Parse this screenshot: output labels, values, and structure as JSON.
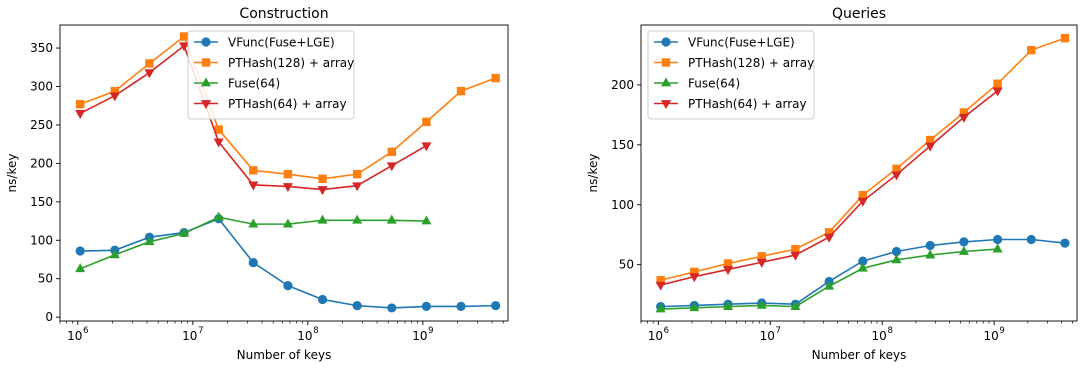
{
  "chart_data": [
    {
      "type": "line",
      "title": "Construction",
      "xlabel": "Number of keys",
      "ylabel": "ns/key",
      "xscale": "log",
      "xlim": [
        700000,
        5500000000
      ],
      "ylim": [
        -5,
        380
      ],
      "xticks": [
        1000000,
        10000000,
        100000000,
        1000000000
      ],
      "xtick_labels": [
        [
          "10",
          "6"
        ],
        [
          "10",
          "7"
        ],
        [
          "10",
          "8"
        ],
        [
          "10",
          "9"
        ]
      ],
      "yticks": [
        0,
        50,
        100,
        150,
        200,
        250,
        300,
        350
      ],
      "ytick_labels": [
        "0",
        "50",
        "100",
        "150",
        "200",
        "250",
        "300",
        "350"
      ],
      "grid": false,
      "legend_position": "top-center",
      "series": [
        {
          "name": "VFunc(Fuse+LGE)",
          "color": "#1f77b4",
          "marker": "circle",
          "x": [
            1048576,
            2097152,
            4194304,
            8388608,
            16777216,
            33554432,
            67108864,
            134217728,
            268435456,
            536870912,
            1073741824,
            2147483648,
            4294967296
          ],
          "y": [
            86,
            87,
            104,
            110,
            128,
            71,
            41,
            23,
            15,
            12,
            14,
            14,
            15
          ]
        },
        {
          "name": "PTHash(128) + array",
          "color": "#ff7f0e",
          "marker": "square",
          "x": [
            1048576,
            2097152,
            4194304,
            8388608,
            16777216,
            33554432,
            67108864,
            134217728,
            268435456,
            536870912,
            1073741824,
            2147483648,
            4294967296
          ],
          "y": [
            277,
            294,
            330,
            365,
            244,
            191,
            186,
            180,
            186,
            215,
            254,
            294,
            311
          ]
        },
        {
          "name": "Fuse(64)",
          "color": "#2ca02c",
          "marker": "triangle-up",
          "x": [
            1048576,
            2097152,
            4194304,
            8388608,
            16777216,
            33554432,
            67108864,
            134217728,
            268435456,
            536870912,
            1073741824
          ],
          "y": [
            63,
            81,
            98,
            109,
            130,
            121,
            121,
            126,
            126,
            126,
            125
          ]
        },
        {
          "name": "PTHash(64) + array",
          "color": "#d62728",
          "marker": "triangle-down",
          "x": [
            1048576,
            2097152,
            4194304,
            8388608,
            16777216,
            33554432,
            67108864,
            134217728,
            268435456,
            536870912,
            1073741824
          ],
          "y": [
            265,
            288,
            318,
            353,
            228,
            172,
            170,
            166,
            171,
            197,
            223
          ]
        }
      ]
    },
    {
      "type": "line",
      "title": "Queries",
      "xlabel": "Number of keys",
      "ylabel": "ns/key",
      "xscale": "log",
      "xlim": [
        700000,
        5500000000
      ],
      "ylim": [
        3,
        250
      ],
      "xticks": [
        1000000,
        10000000,
        100000000,
        1000000000
      ],
      "xtick_labels": [
        [
          "10",
          "6"
        ],
        [
          "10",
          "7"
        ],
        [
          "10",
          "8"
        ],
        [
          "10",
          "9"
        ]
      ],
      "yticks": [
        50,
        100,
        150,
        200
      ],
      "ytick_labels": [
        "50",
        "100",
        "150",
        "200"
      ],
      "grid": false,
      "legend_position": "top-left",
      "series": [
        {
          "name": "VFunc(Fuse+LGE)",
          "color": "#1f77b4",
          "marker": "circle",
          "x": [
            1048576,
            2097152,
            4194304,
            8388608,
            16777216,
            33554432,
            67108864,
            134217728,
            268435456,
            536870912,
            1073741824,
            2147483648,
            4294967296
          ],
          "y": [
            15,
            16,
            17,
            18,
            17,
            36,
            53,
            61,
            66,
            69,
            71,
            71,
            68
          ]
        },
        {
          "name": "PTHash(128) + array",
          "color": "#ff7f0e",
          "marker": "square",
          "x": [
            1048576,
            2097152,
            4194304,
            8388608,
            16777216,
            33554432,
            67108864,
            134217728,
            268435456,
            536870912,
            1073741824,
            2147483648,
            4294967296
          ],
          "y": [
            37,
            44,
            51,
            57,
            63,
            77,
            108,
            130,
            154,
            177,
            201,
            229,
            239
          ]
        },
        {
          "name": "Fuse(64)",
          "color": "#2ca02c",
          "marker": "triangle-up",
          "x": [
            1048576,
            2097152,
            4194304,
            8388608,
            16777216,
            33554432,
            67108864,
            134217728,
            268435456,
            536870912,
            1073741824
          ],
          "y": [
            13,
            14,
            15,
            16,
            15,
            32,
            47,
            54,
            58,
            61,
            63
          ]
        },
        {
          "name": "PTHash(64) + array",
          "color": "#d62728",
          "marker": "triangle-down",
          "x": [
            1048576,
            2097152,
            4194304,
            8388608,
            16777216,
            33554432,
            67108864,
            134217728,
            268435456,
            536870912,
            1073741824
          ],
          "y": [
            33,
            40,
            46,
            52,
            58,
            73,
            103,
            125,
            149,
            173,
            195
          ]
        }
      ]
    }
  ]
}
